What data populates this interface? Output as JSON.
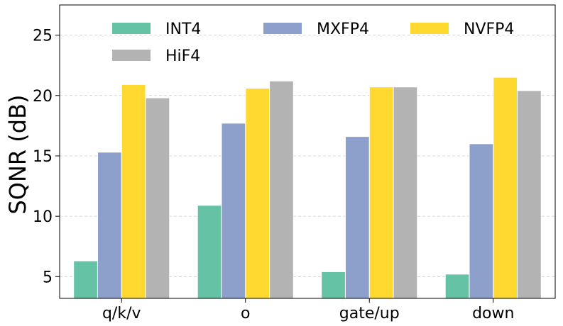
{
  "chart_data": {
    "type": "bar",
    "title": "",
    "xlabel": "",
    "ylabel": "SQNR (dB)",
    "ylim": [
      3.2,
      27.5
    ],
    "yticks": [
      5,
      10,
      15,
      20,
      25
    ],
    "grid": "horizontal dashed",
    "legend_position": "top",
    "categories": [
      "q/k/v",
      "o",
      "gate/up",
      "down"
    ],
    "series": [
      {
        "name": "INT4",
        "color": "#66c2a5",
        "values": [
          6.3,
          10.9,
          5.4,
          5.2
        ]
      },
      {
        "name": "MXFP4",
        "color": "#8da0cb",
        "values": [
          15.3,
          17.7,
          16.6,
          16.0
        ]
      },
      {
        "name": "NVFP4",
        "color": "#ffd92f",
        "values": [
          20.9,
          20.6,
          20.7,
          21.5
        ]
      },
      {
        "name": "HiF4",
        "color": "#b3b3b3",
        "values": [
          19.8,
          21.2,
          20.7,
          20.4
        ]
      }
    ]
  }
}
